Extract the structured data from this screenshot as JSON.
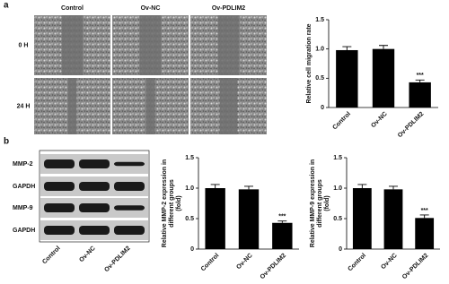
{
  "figure": {
    "panel_a": "a",
    "panel_b": "b",
    "columns": [
      "Control",
      "Ov-NC",
      "Ov-PDLIM2"
    ],
    "rows": [
      "0 H",
      "24 H"
    ],
    "blot_rows": [
      "MMP-2",
      "GAPDH",
      "MMP-9",
      "GAPDH"
    ],
    "blot_lanes": [
      "Control",
      "Ov-NC",
      "Ov-PDLIM2"
    ]
  },
  "chart_data": [
    {
      "type": "bar",
      "ylabel": [
        "Relative cell migration rate"
      ],
      "categories": [
        "Control",
        "Ov-NC",
        "Ov-PDLIM2"
      ],
      "values": [
        0.98,
        1.0,
        0.43
      ],
      "errors": [
        0.06,
        0.06,
        0.04
      ],
      "significance": [
        null,
        null,
        "***"
      ],
      "color": "#000000",
      "ylim": [
        0,
        1.5
      ],
      "yticks": [
        0,
        0.5,
        {
          "value": 1,
          "label": "1.0"
        },
        1.5
      ]
    },
    {
      "type": "bar",
      "ylabel": [
        "Relative MMP-2 expression in",
        "different groups",
        "(fold)"
      ],
      "categories": [
        "Control",
        "Ov-NC",
        "Ov-PDLIM2"
      ],
      "values": [
        1.0,
        0.98,
        0.43
      ],
      "errors": [
        0.06,
        0.05,
        0.03
      ],
      "significance": [
        null,
        null,
        "***"
      ],
      "color": "#000000",
      "ylim": [
        0,
        1.5
      ],
      "yticks": [
        0,
        0.5,
        {
          "value": 1,
          "label": "1.0"
        },
        1.5
      ]
    },
    {
      "type": "bar",
      "ylabel": [
        "Relative MMP-9 expression in",
        "different groups",
        "(fold)"
      ],
      "categories": [
        "Control",
        "Ov-NC",
        "Ov-PDLIM2"
      ],
      "values": [
        1.0,
        0.98,
        0.51
      ],
      "errors": [
        0.06,
        0.05,
        0.05
      ],
      "significance": [
        null,
        null,
        "***"
      ],
      "color": "#000000",
      "ylim": [
        0,
        1.5
      ],
      "yticks": [
        0,
        0.5,
        {
          "value": 1,
          "label": "1.0"
        },
        1.5
      ]
    }
  ]
}
